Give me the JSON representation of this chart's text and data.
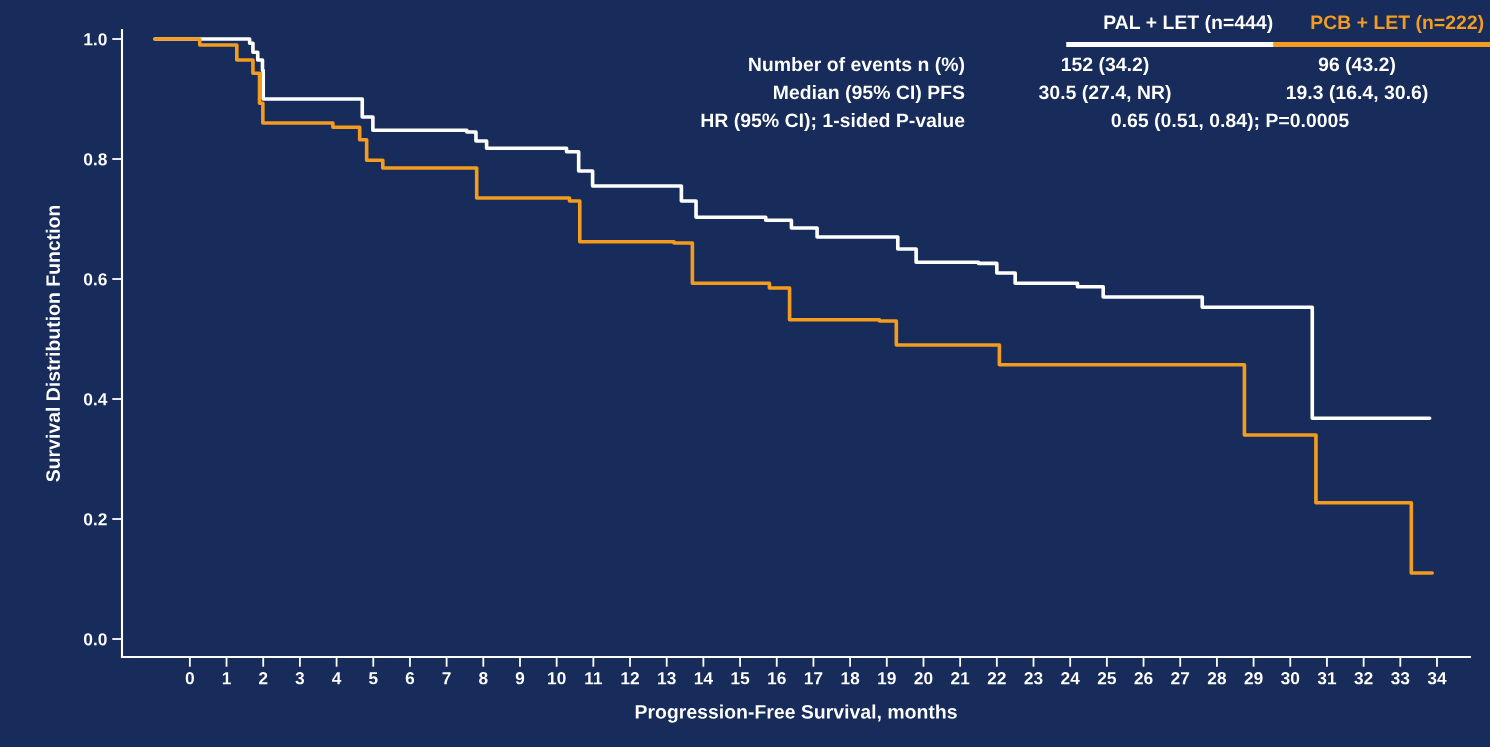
{
  "chart_data": {
    "type": "step",
    "xlabel": "Progression-Free Survival, months",
    "ylabel": "Survival Distribution Function",
    "xlim": [
      -1.85,
      34.9
    ],
    "xticks": [
      0,
      1,
      2,
      3,
      4,
      5,
      6,
      7,
      8,
      9,
      10,
      11,
      12,
      13,
      14,
      15,
      16,
      17,
      18,
      19,
      20,
      21,
      22,
      23,
      24,
      25,
      26,
      27,
      28,
      29,
      30,
      31,
      32,
      33,
      34
    ],
    "ylim": [
      -0.03,
      1.015
    ],
    "yticks": [
      {
        "value": 0,
        "label": "0.0"
      },
      {
        "value": 0.2,
        "label": "0.2"
      },
      {
        "value": 0.4,
        "label": "0.4"
      },
      {
        "value": 0.6,
        "label": "0.6"
      },
      {
        "value": 0.8,
        "label": "0.8"
      },
      {
        "value": 1,
        "label": "1.0"
      }
    ],
    "grid": false,
    "legend": "top right",
    "line_style": "solid",
    "series": [
      {
        "name": "PAL + LET (n=444)",
        "color": "#ffffff",
        "x": [
          -0.95,
          0.95,
          1.63,
          1.72,
          1.85,
          1.98,
          2.0,
          4.44,
          4.7,
          4.99,
          7.55,
          7.8,
          8.09,
          10.27,
          10.6,
          10.98,
          13.0,
          13.4,
          13.8,
          15.7,
          16.4,
          17.1,
          18.8,
          19.3,
          19.8,
          21.5,
          22.0,
          22.5,
          24.2,
          24.9,
          27.4,
          27.6,
          30.6,
          33.8
        ],
        "values": [
          1.0,
          1.0,
          0.993,
          0.978,
          0.965,
          0.948,
          0.9,
          0.9,
          0.87,
          0.848,
          0.845,
          0.83,
          0.818,
          0.812,
          0.78,
          0.755,
          0.755,
          0.73,
          0.703,
          0.698,
          0.685,
          0.67,
          0.67,
          0.65,
          0.628,
          0.626,
          0.61,
          0.593,
          0.587,
          0.57,
          0.57,
          0.553,
          0.368,
          0.368
        ]
      },
      {
        "name": "PCB + LET (n=222)",
        "color": "#f39c1f",
        "x": [
          -0.95,
          0.27,
          1.28,
          1.72,
          1.9,
          1.99,
          3.9,
          4.63,
          4.82,
          5.26,
          7.44,
          7.82,
          10.35,
          10.63,
          13.2,
          13.7,
          15.8,
          16.35,
          18.8,
          19.26,
          21.06,
          22.07,
          28.75,
          30.7,
          33.3,
          33.87
        ],
        "values": [
          1.0,
          0.99,
          0.965,
          0.943,
          0.893,
          0.86,
          0.853,
          0.832,
          0.798,
          0.785,
          0.785,
          0.735,
          0.73,
          0.662,
          0.66,
          0.593,
          0.585,
          0.532,
          0.53,
          0.49,
          0.49,
          0.457,
          0.34,
          0.227,
          0.11,
          0.11
        ]
      }
    ],
    "annotations": [
      "Number of events n (%)",
      "152 (34.2)",
      "96 (43.2)",
      "Median (95% CI) PFS",
      "30.5 (27.4, NR)",
      "19.3 (16.4, 30.6)",
      "HR (95% CI); 1-sided P-value",
      "0.65 (0.51, 0.84); P=0.0005"
    ]
  }
}
